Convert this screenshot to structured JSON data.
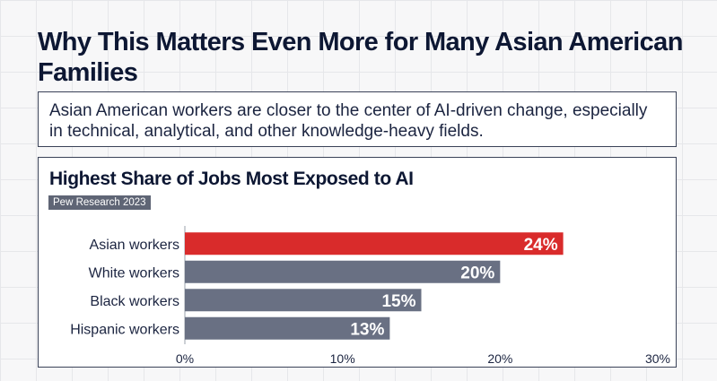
{
  "title": "Why This Matters Even More for Many Asian American Families",
  "subtitle": "Asian American workers are closer to the center of AI-driven change, especially in technical, analytical, and other knowledge-heavy fields.",
  "chart": {
    "title": "Highest Share of Jobs Most Exposed to AI",
    "source": "Pew Research 2023"
  },
  "colors": {
    "highlight": "#d92b2b",
    "bar": "#697083",
    "bar_label": "#ffffff",
    "axis": "#9aa0ab",
    "text": "#1b2440"
  },
  "chart_data": {
    "type": "bar",
    "orientation": "horizontal",
    "title": "Highest Share of Jobs Most Exposed to AI",
    "categories": [
      "Asian workers",
      "White workers",
      "Black workers",
      "Hispanic workers"
    ],
    "values": [
      24,
      20,
      15,
      13
    ],
    "value_labels": [
      "24%",
      "20%",
      "15%",
      "13%"
    ],
    "highlight_index": 0,
    "xlim": [
      0,
      30
    ],
    "xticks": [
      0,
      10,
      20,
      30
    ],
    "xtick_labels": [
      "0%",
      "10%",
      "20%",
      "30%"
    ],
    "xlabel": "",
    "ylabel": "",
    "grid": false
  }
}
